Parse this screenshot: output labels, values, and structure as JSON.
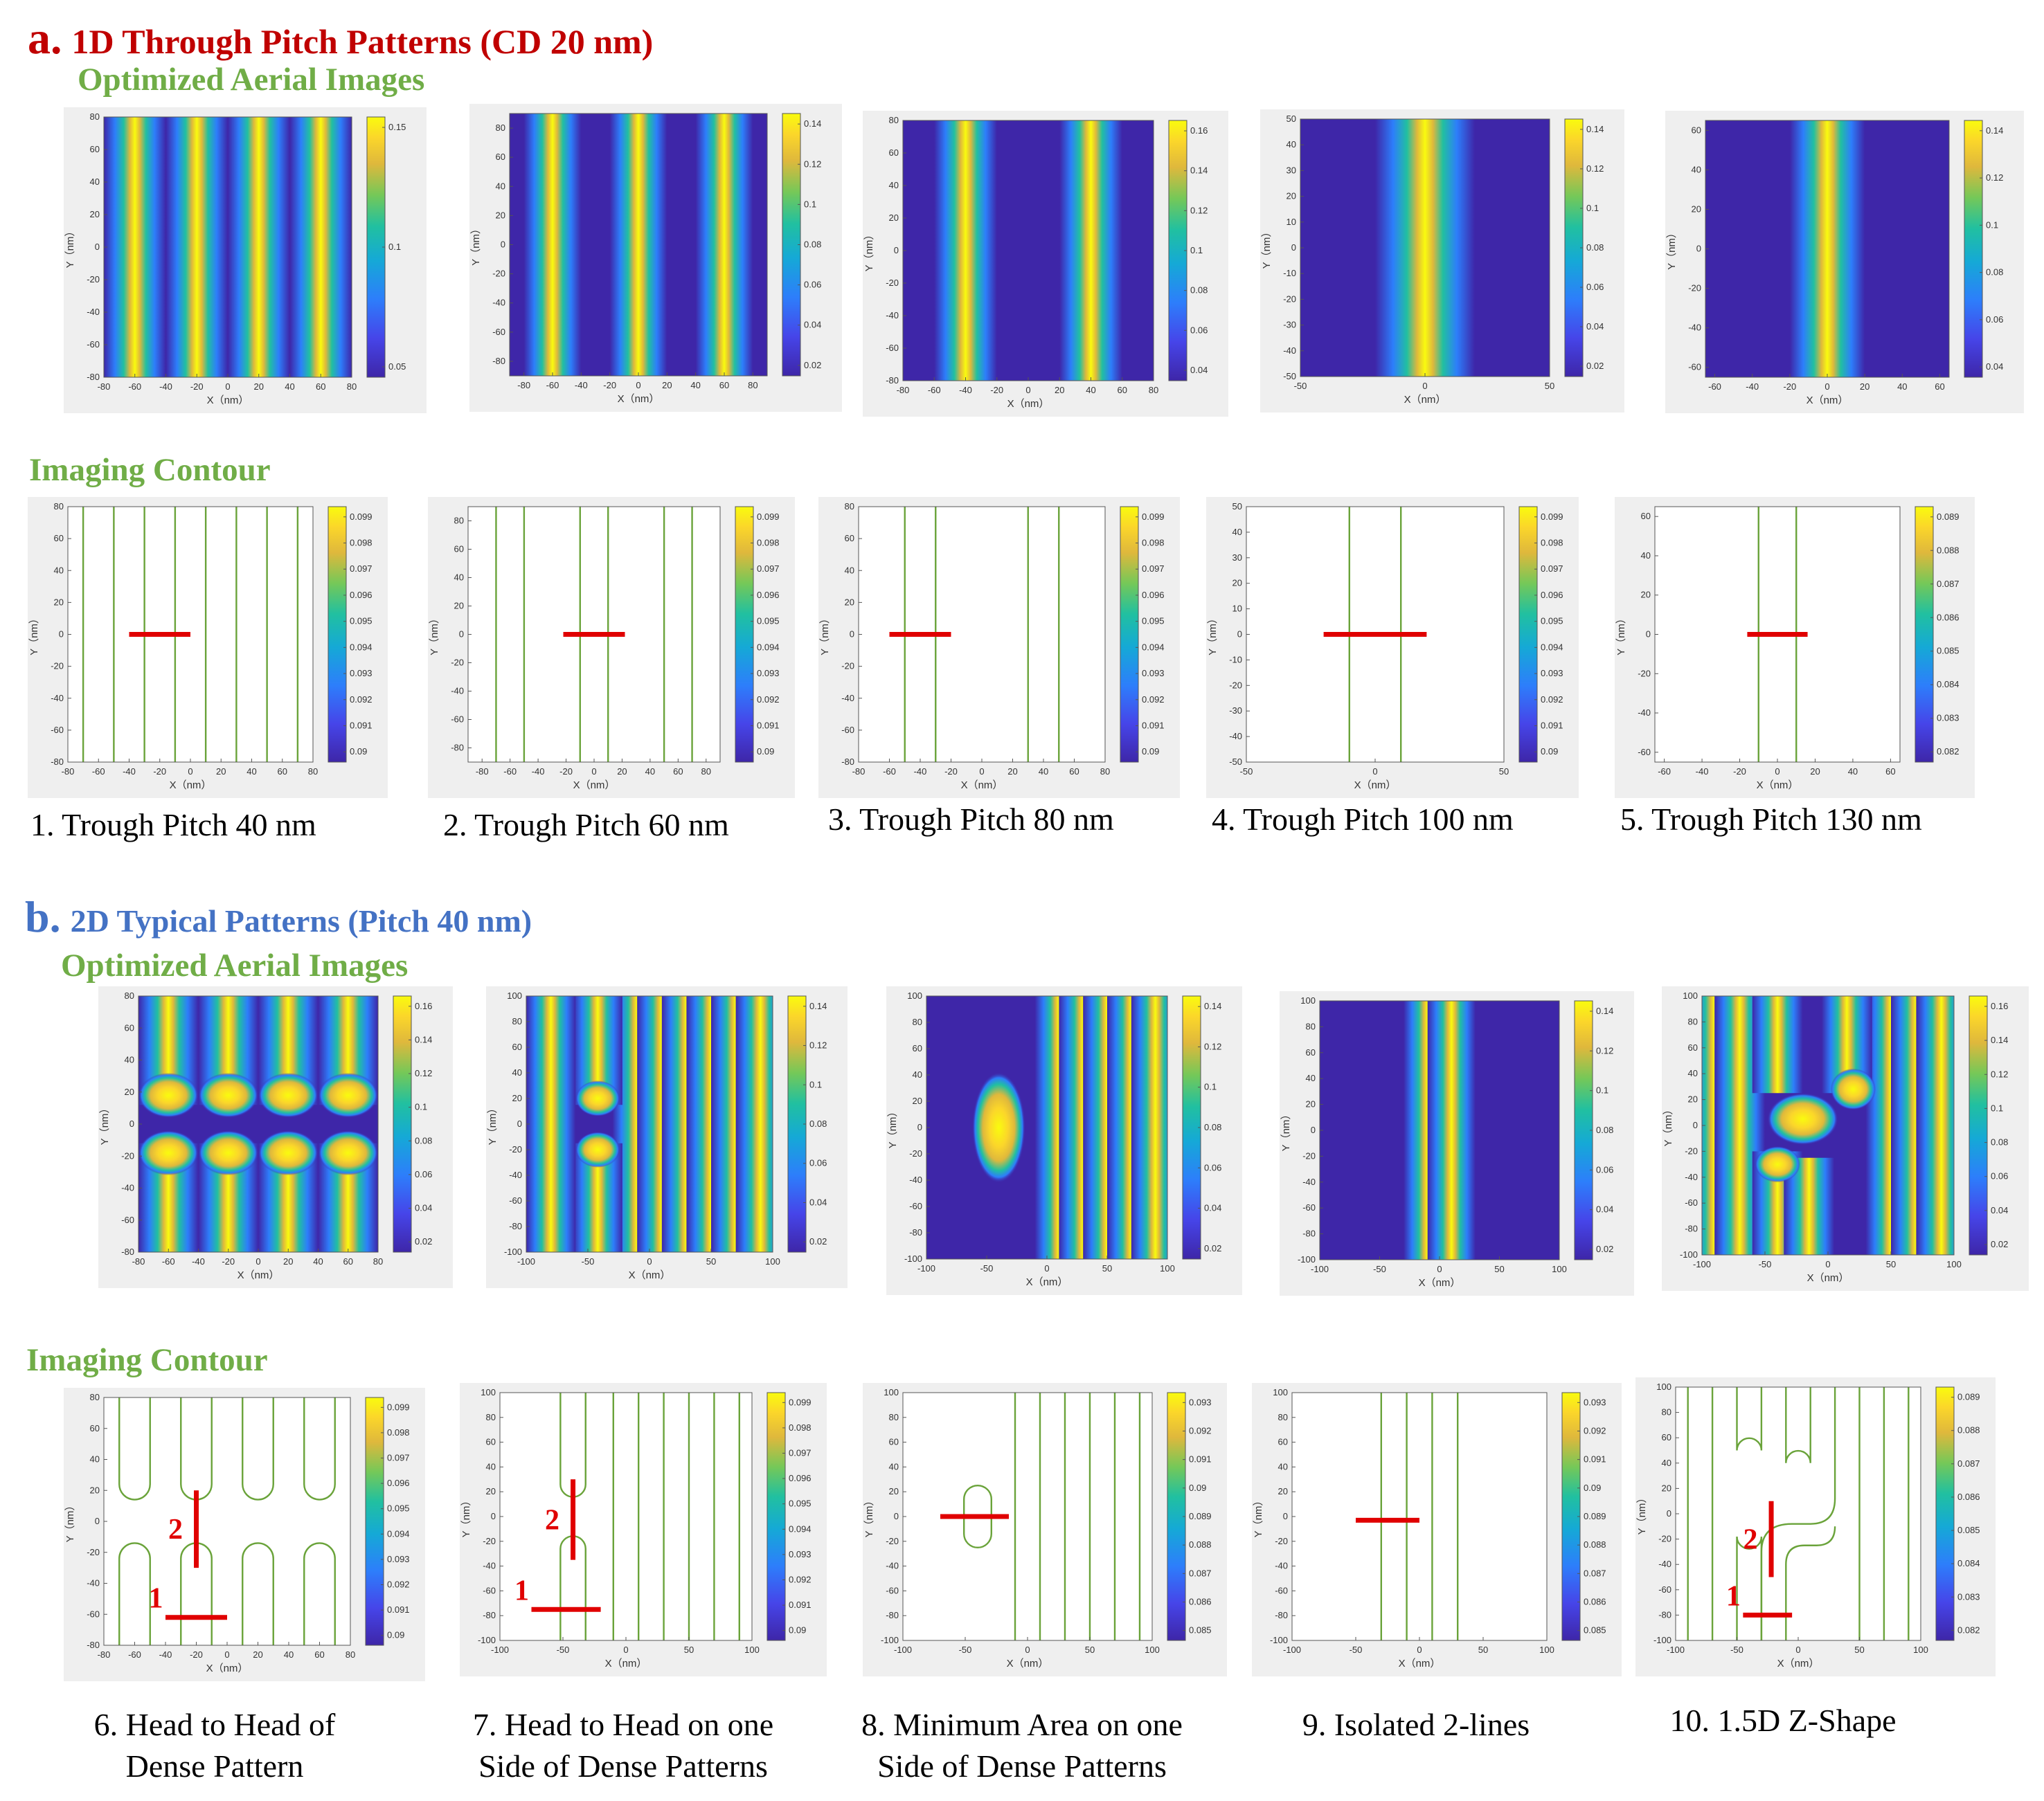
{
  "section_a": {
    "letter": "a.",
    "title": "1D Through Pitch Patterns (CD 20 nm)",
    "aerial_label": "Optimized Aerial Images",
    "contour_label": "Imaging Contour",
    "captions": [
      "1. Trough Pitch 40 nm",
      "2. Trough Pitch 60 nm",
      "3. Trough Pitch 80 nm",
      "4. Trough Pitch 100 nm",
      "5. Trough Pitch 130 nm"
    ]
  },
  "section_b": {
    "letter": "b.",
    "title": "2D  Typical Patterns (Pitch 40 nm)",
    "aerial_label": "Optimized Aerial Images",
    "contour_label": "Imaging Contour",
    "captions": [
      {
        "line1": "6. Head to Head of",
        "line2": "Dense Pattern"
      },
      {
        "line1": "7. Head to Head  on one",
        "line2": "Side of Dense Patterns"
      },
      {
        "line1": "8. Minimum Area on one",
        "line2": "Side of Dense Patterns"
      },
      {
        "line1": "9. Isolated 2-lines",
        "line2": ""
      },
      {
        "line1": "10. 1.5D Z-Shape",
        "line2": ""
      }
    ]
  },
  "axis": {
    "xlabel": "X（nm）",
    "ylabel": "Y（nm）"
  },
  "colors": {
    "line": "#6aa33a",
    "cut": "#e00000",
    "dark": "#3e26a8",
    "yellow": "#f9fb0e"
  },
  "chart_data": [
    {
      "id": "a-aerial-1",
      "type": "heatmap",
      "xlim": [
        -80,
        80
      ],
      "ylim": [
        -80,
        80
      ],
      "xticks": [
        -80,
        -60,
        -40,
        -20,
        0,
        20,
        40,
        60,
        80
      ],
      "yticks": [
        -80,
        -60,
        -40,
        -20,
        0,
        20,
        40,
        60,
        80
      ],
      "cbar": [
        "0.15",
        "0.1",
        "0.05"
      ],
      "lines": [
        -60,
        -20,
        20,
        60
      ]
    },
    {
      "id": "a-aerial-2",
      "type": "heatmap",
      "xlim": [
        -90,
        90
      ],
      "ylim": [
        -90,
        90
      ],
      "xticks": [
        -80,
        -60,
        -40,
        -20,
        0,
        20,
        40,
        60,
        80
      ],
      "yticks": [
        -80,
        -60,
        -40,
        -20,
        0,
        20,
        40,
        60,
        80
      ],
      "cbar": [
        "0.14",
        "0.12",
        "0.1",
        "0.08",
        "0.06",
        "0.04",
        "0.02"
      ],
      "lines": [
        -60,
        0,
        60
      ]
    },
    {
      "id": "a-aerial-3",
      "type": "heatmap",
      "xlim": [
        -80,
        80
      ],
      "ylim": [
        -80,
        80
      ],
      "xticks": [
        -80,
        -60,
        -40,
        -20,
        0,
        20,
        40,
        60,
        80
      ],
      "yticks": [
        -80,
        -60,
        -40,
        -20,
        0,
        20,
        40,
        60,
        80
      ],
      "cbar": [
        "0.16",
        "0.14",
        "0.12",
        "0.1",
        "0.08",
        "0.06",
        "0.04"
      ],
      "lines": [
        -40,
        40
      ]
    },
    {
      "id": "a-aerial-4",
      "type": "heatmap",
      "xlim": [
        -50,
        50
      ],
      "ylim": [
        -50,
        50
      ],
      "xticks": [
        -50,
        0,
        50
      ],
      "yticks": [
        -50,
        -40,
        -30,
        -20,
        -10,
        0,
        10,
        20,
        30,
        40,
        50
      ],
      "cbar": [
        "0.14",
        "0.12",
        "0.1",
        "0.08",
        "0.06",
        "0.04",
        "0.02"
      ],
      "lines": [
        0
      ]
    },
    {
      "id": "a-aerial-5",
      "type": "heatmap",
      "xlim": [
        -65,
        65
      ],
      "ylim": [
        -65,
        65
      ],
      "xticks": [
        -60,
        -40,
        -20,
        0,
        20,
        40,
        60
      ],
      "yticks": [
        -60,
        -40,
        -20,
        0,
        20,
        40,
        60
      ],
      "cbar": [
        "0.14",
        "0.12",
        "0.1",
        "0.08",
        "0.06",
        "0.04"
      ],
      "lines": [
        0
      ]
    },
    {
      "id": "a-contour-1",
      "type": "contour",
      "xlim": [
        -80,
        80
      ],
      "ylim": [
        -80,
        80
      ],
      "xticks": [
        -80,
        -60,
        -40,
        -20,
        0,
        20,
        40,
        60,
        80
      ],
      "yticks": [
        -80,
        -60,
        -40,
        -20,
        0,
        20,
        40,
        60,
        80
      ],
      "cbar": [
        "0.099",
        "0.098",
        "0.097",
        "0.096",
        "0.095",
        "0.094",
        "0.093",
        "0.092",
        "0.091",
        "0.09"
      ],
      "vlines": [
        -70,
        -50,
        -30,
        -10,
        10,
        30,
        50,
        70
      ],
      "cuts": [
        {
          "x1": -40,
          "x2": 0,
          "y1": 0,
          "y2": 0
        }
      ]
    },
    {
      "id": "a-contour-2",
      "type": "contour",
      "xlim": [
        -90,
        90
      ],
      "ylim": [
        -90,
        90
      ],
      "xticks": [
        -80,
        -60,
        -40,
        -20,
        0,
        20,
        40,
        60,
        80
      ],
      "yticks": [
        -80,
        -60,
        -40,
        -20,
        0,
        20,
        40,
        60,
        80
      ],
      "cbar": [
        "0.099",
        "0.098",
        "0.097",
        "0.096",
        "0.095",
        "0.094",
        "0.093",
        "0.092",
        "0.091",
        "0.09"
      ],
      "vlines": [
        -70,
        -50,
        -10,
        10,
        50,
        70
      ],
      "cuts": [
        {
          "x1": -22,
          "x2": 22,
          "y1": 0,
          "y2": 0
        }
      ]
    },
    {
      "id": "a-contour-3",
      "type": "contour",
      "xlim": [
        -80,
        80
      ],
      "ylim": [
        -80,
        80
      ],
      "xticks": [
        -80,
        -60,
        -40,
        -20,
        0,
        20,
        40,
        60,
        80
      ],
      "yticks": [
        -80,
        -60,
        -40,
        -20,
        0,
        20,
        40,
        60,
        80
      ],
      "cbar": [
        "0.099",
        "0.098",
        "0.097",
        "0.096",
        "0.095",
        "0.094",
        "0.093",
        "0.092",
        "0.091",
        "0.09"
      ],
      "vlines": [
        -50,
        -30,
        30,
        50
      ],
      "cuts": [
        {
          "x1": -60,
          "x2": -20,
          "y1": 0,
          "y2": 0
        }
      ]
    },
    {
      "id": "a-contour-4",
      "type": "contour",
      "xlim": [
        -50,
        50
      ],
      "ylim": [
        -50,
        50
      ],
      "xticks": [
        -50,
        0,
        50
      ],
      "yticks": [
        -50,
        -40,
        -30,
        -20,
        -10,
        0,
        10,
        20,
        30,
        40,
        50
      ],
      "cbar": [
        "0.099",
        "0.098",
        "0.097",
        "0.096",
        "0.095",
        "0.094",
        "0.093",
        "0.092",
        "0.091",
        "0.09"
      ],
      "vlines": [
        -10,
        10
      ],
      "cuts": [
        {
          "x1": -20,
          "x2": 20,
          "y1": 0,
          "y2": 0
        }
      ]
    },
    {
      "id": "a-contour-5",
      "type": "contour",
      "xlim": [
        -65,
        65
      ],
      "ylim": [
        -65,
        65
      ],
      "xticks": [
        -60,
        -40,
        -20,
        0,
        20,
        40,
        60
      ],
      "yticks": [
        -60,
        -40,
        -20,
        0,
        20,
        40,
        60
      ],
      "cbar": [
        "0.089",
        "0.088",
        "0.087",
        "0.086",
        "0.085",
        "0.084",
        "0.083",
        "0.082"
      ],
      "vlines": [
        -10,
        10
      ],
      "cuts": [
        {
          "x1": -16,
          "x2": 16,
          "y1": 0,
          "y2": 0
        }
      ]
    },
    {
      "id": "b-aerial-6",
      "type": "heatmap",
      "xlim": [
        -80,
        80
      ],
      "ylim": [
        -80,
        80
      ],
      "xticks": [
        -80,
        -60,
        -40,
        -20,
        0,
        20,
        40,
        60,
        80
      ],
      "yticks": [
        -80,
        -60,
        -40,
        -20,
        0,
        20,
        40,
        60,
        80
      ],
      "cbar": [
        "0.16",
        "0.14",
        "0.12",
        "0.1",
        "0.08",
        "0.06",
        "0.04",
        "0.02"
      ]
    },
    {
      "id": "b-aerial-7",
      "type": "heatmap",
      "xlim": [
        -100,
        100
      ],
      "ylim": [
        -100,
        100
      ],
      "xticks": [
        -100,
        -50,
        0,
        50,
        100
      ],
      "yticks": [
        -100,
        -80,
        -60,
        -40,
        -20,
        0,
        20,
        40,
        60,
        80,
        100
      ],
      "cbar": [
        "0.14",
        "0.12",
        "0.1",
        "0.08",
        "0.06",
        "0.04",
        "0.02"
      ]
    },
    {
      "id": "b-aerial-8",
      "type": "heatmap",
      "xlim": [
        -100,
        100
      ],
      "ylim": [
        -100,
        100
      ],
      "xticks": [
        -100,
        -50,
        0,
        50,
        100
      ],
      "yticks": [
        -100,
        -80,
        -60,
        -40,
        -20,
        0,
        20,
        40,
        60,
        80,
        100
      ],
      "cbar": [
        "0.14",
        "0.12",
        "0.1",
        "0.08",
        "0.06",
        "0.04",
        "0.02"
      ]
    },
    {
      "id": "b-aerial-9",
      "type": "heatmap",
      "xlim": [
        -100,
        100
      ],
      "ylim": [
        -100,
        100
      ],
      "xticks": [
        -100,
        -50,
        0,
        50,
        100
      ],
      "yticks": [
        -100,
        -80,
        -60,
        -40,
        -20,
        0,
        20,
        40,
        60,
        80,
        100
      ],
      "cbar": [
        "0.14",
        "0.12",
        "0.1",
        "0.08",
        "0.06",
        "0.04",
        "0.02"
      ],
      "lines": [
        -10,
        10
      ]
    },
    {
      "id": "b-aerial-10",
      "type": "heatmap",
      "xlim": [
        -100,
        100
      ],
      "ylim": [
        -100,
        100
      ],
      "xticks": [
        -100,
        -50,
        0,
        50,
        100
      ],
      "yticks": [
        -100,
        -80,
        -60,
        -40,
        -20,
        0,
        20,
        40,
        60,
        80,
        100
      ],
      "cbar": [
        "0.16",
        "0.14",
        "0.12",
        "0.1",
        "0.08",
        "0.06",
        "0.04",
        "0.02"
      ]
    },
    {
      "id": "b-contour-6",
      "type": "contour",
      "xlim": [
        -80,
        80
      ],
      "ylim": [
        -80,
        80
      ],
      "xticks": [
        -80,
        -60,
        -40,
        -20,
        0,
        20,
        40,
        60,
        80
      ],
      "yticks": [
        -80,
        -60,
        -40,
        -20,
        0,
        20,
        40,
        60,
        80
      ],
      "cbar": [
        "0.099",
        "0.098",
        "0.097",
        "0.096",
        "0.095",
        "0.094",
        "0.093",
        "0.092",
        "0.091",
        "0.09"
      ],
      "cuts": [
        {
          "x1": -40,
          "x2": 0,
          "y1": -62,
          "y2": -62,
          "label": "1"
        },
        {
          "x1": -20,
          "x2": -20,
          "y1": -30,
          "y2": 20,
          "label": "2"
        }
      ]
    },
    {
      "id": "b-contour-7",
      "type": "contour",
      "xlim": [
        -100,
        100
      ],
      "ylim": [
        -100,
        100
      ],
      "xticks": [
        -100,
        -50,
        0,
        50,
        100
      ],
      "yticks": [
        -100,
        -80,
        -60,
        -40,
        -20,
        0,
        20,
        40,
        60,
        80,
        100
      ],
      "cbar": [
        "0.099",
        "0.098",
        "0.097",
        "0.096",
        "0.095",
        "0.094",
        "0.093",
        "0.092",
        "0.091",
        "0.09"
      ],
      "vlines": [
        -10,
        10,
        30,
        50,
        70,
        90
      ],
      "cuts": [
        {
          "x1": -75,
          "x2": -20,
          "y1": -75,
          "y2": -75,
          "label": "1"
        },
        {
          "x1": -42,
          "x2": -42,
          "y1": -35,
          "y2": 30,
          "label": "2"
        }
      ]
    },
    {
      "id": "b-contour-8",
      "type": "contour",
      "xlim": [
        -100,
        100
      ],
      "ylim": [
        -100,
        100
      ],
      "xticks": [
        -100,
        -50,
        0,
        50,
        100
      ],
      "yticks": [
        -100,
        -80,
        -60,
        -40,
        -20,
        0,
        20,
        40,
        60,
        80,
        100
      ],
      "cbar": [
        "0.093",
        "0.092",
        "0.091",
        "0.09",
        "0.089",
        "0.088",
        "0.087",
        "0.086",
        "0.085"
      ],
      "vlines": [
        -10,
        10,
        30,
        50,
        70,
        90
      ],
      "cuts": [
        {
          "x1": -70,
          "x2": -15,
          "y1": 0,
          "y2": 0
        }
      ]
    },
    {
      "id": "b-contour-9",
      "type": "contour",
      "xlim": [
        -100,
        100
      ],
      "ylim": [
        -100,
        100
      ],
      "xticks": [
        -100,
        -50,
        0,
        50,
        100
      ],
      "yticks": [
        -100,
        -80,
        -60,
        -40,
        -20,
        0,
        20,
        40,
        60,
        80,
        100
      ],
      "cbar": [
        "0.093",
        "0.092",
        "0.091",
        "0.09",
        "0.089",
        "0.088",
        "0.087",
        "0.086",
        "0.085"
      ],
      "vlines": [
        -30,
        -10,
        10,
        30
      ],
      "cuts": [
        {
          "x1": -50,
          "x2": 0,
          "y1": -3,
          "y2": -3
        }
      ]
    },
    {
      "id": "b-contour-10",
      "type": "contour",
      "xlim": [
        -100,
        100
      ],
      "ylim": [
        -100,
        100
      ],
      "xticks": [
        -100,
        -50,
        0,
        50,
        100
      ],
      "yticks": [
        -100,
        -80,
        -60,
        -40,
        -20,
        0,
        20,
        40,
        60,
        80,
        100
      ],
      "cbar": [
        "0.089",
        "0.088",
        "0.087",
        "0.086",
        "0.085",
        "0.084",
        "0.083",
        "0.082"
      ],
      "vlines": [
        -90,
        -70,
        50,
        70,
        90
      ],
      "cuts": [
        {
          "x1": -45,
          "x2": -5,
          "y1": -80,
          "y2": -80,
          "label": "1"
        },
        {
          "x1": -22,
          "x2": -22,
          "y1": -50,
          "y2": 10,
          "label": "2"
        }
      ]
    }
  ]
}
